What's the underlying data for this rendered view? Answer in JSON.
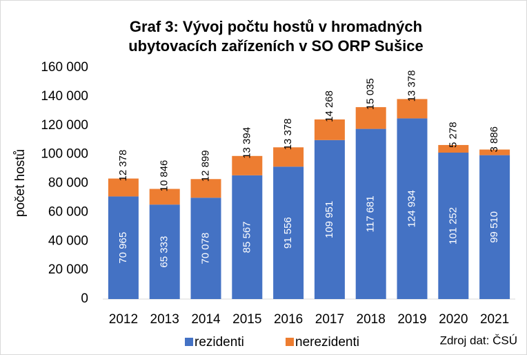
{
  "chart_data": {
    "type": "stacked_bar",
    "title": [
      "Graf 3: Vývoj počtu hostů v hromadných",
      "ubytovacích zařízeních v SO ORP Sušice"
    ],
    "y_label": "počet hostů",
    "source": "Zdroj dat: ČSÚ",
    "categories": [
      "2012",
      "2013",
      "2014",
      "2015",
      "2016",
      "2017",
      "2018",
      "2019",
      "2020",
      "2021"
    ],
    "series": [
      {
        "name": "rezidenti",
        "color": "#4472c4",
        "values": [
          70965,
          65333,
          70078,
          85567,
          91556,
          109951,
          117681,
          124934,
          101252,
          99510
        ],
        "value_labels": [
          "70 965",
          "65 333",
          "70 078",
          "85 567",
          "91 556",
          "109 951",
          "117 681",
          "124 934",
          "101 252",
          "99 510"
        ]
      },
      {
        "name": "nerezidenti",
        "color": "#ed7d31",
        "values": [
          12378,
          10846,
          12899,
          13394,
          13378,
          14268,
          15035,
          13378,
          5278,
          3886
        ],
        "value_labels": [
          "12 378",
          "10 846",
          "12 899",
          "13 394",
          "13 378",
          "14 268",
          "15 035",
          "13 378",
          "5 278",
          "3 886"
        ]
      }
    ],
    "ylim": [
      0,
      160000
    ],
    "yticks": [
      0,
      {
        "value": 20000,
        "label": "20 000"
      },
      {
        "value": 40000,
        "label": "40 000"
      },
      {
        "value": 60000,
        "label": "60 000"
      },
      {
        "value": 80000,
        "label": "80 000"
      },
      {
        "value": 100000,
        "label": "100 000"
      },
      {
        "value": 120000,
        "label": "120 000"
      },
      {
        "value": 140000,
        "label": "140 000"
      },
      {
        "value": 160000,
        "label": "160 000"
      }
    ],
    "grid": false,
    "legend": "bottom"
  }
}
